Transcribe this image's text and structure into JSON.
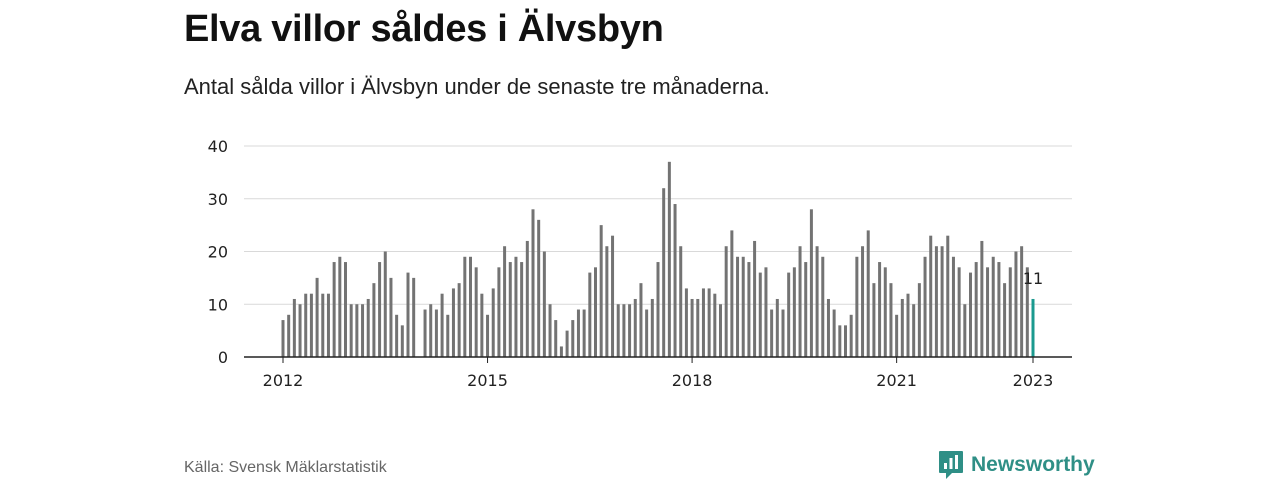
{
  "header": {
    "title": "Elva villor såldes i Älvsbyn",
    "subtitle": "Antal sålda villor i Älvsbyn under de senaste tre månaderna."
  },
  "footer": {
    "source": "Källa: Svensk Mäklarstatistik",
    "brand": "Newsworthy",
    "brand_icon": "bar-chart-logo-icon"
  },
  "colors": {
    "bar": "#737373",
    "highlight": "#1b9a8f",
    "grid": "#d9d9d9",
    "axis": "#222222",
    "brand": "#2f8f86"
  },
  "chart_data": {
    "type": "bar",
    "title": "Elva villor såldes i Älvsbyn",
    "xlabel": "",
    "ylabel": "",
    "ylim": [
      0,
      40
    ],
    "yticks": [
      0,
      10,
      20,
      30,
      40
    ],
    "xticks": [
      {
        "label": "2012",
        "x": "2012-01"
      },
      {
        "label": "2015",
        "x": "2015-01"
      },
      {
        "label": "2018",
        "x": "2018-01"
      },
      {
        "label": "2021",
        "x": "2021-01"
      },
      {
        "label": "2023",
        "x": "2023-01"
      }
    ],
    "grid": true,
    "last_value_label": "11",
    "x": [
      "2012-01",
      "2012-02",
      "2012-03",
      "2012-04",
      "2012-05",
      "2012-06",
      "2012-07",
      "2012-08",
      "2012-09",
      "2012-10",
      "2012-11",
      "2012-12",
      "2013-01",
      "2013-02",
      "2013-03",
      "2013-04",
      "2013-05",
      "2013-06",
      "2013-07",
      "2013-08",
      "2013-09",
      "2013-10",
      "2013-11",
      "2013-12",
      "2014-01",
      "2014-02",
      "2014-03",
      "2014-04",
      "2014-05",
      "2014-06",
      "2014-07",
      "2014-08",
      "2014-09",
      "2014-10",
      "2014-11",
      "2014-12",
      "2015-01",
      "2015-02",
      "2015-03",
      "2015-04",
      "2015-05",
      "2015-06",
      "2015-07",
      "2015-08",
      "2015-09",
      "2015-10",
      "2015-11",
      "2015-12",
      "2016-01",
      "2016-02",
      "2016-03",
      "2016-04",
      "2016-05",
      "2016-06",
      "2016-07",
      "2016-08",
      "2016-09",
      "2016-10",
      "2016-11",
      "2016-12",
      "2017-01",
      "2017-02",
      "2017-03",
      "2017-04",
      "2017-05",
      "2017-06",
      "2017-07",
      "2017-08",
      "2017-09",
      "2017-10",
      "2017-11",
      "2017-12",
      "2018-01",
      "2018-02",
      "2018-03",
      "2018-04",
      "2018-05",
      "2018-06",
      "2018-07",
      "2018-08",
      "2018-09",
      "2018-10",
      "2018-11",
      "2018-12",
      "2019-01",
      "2019-02",
      "2019-03",
      "2019-04",
      "2019-05",
      "2019-06",
      "2019-07",
      "2019-08",
      "2019-09",
      "2019-10",
      "2019-11",
      "2019-12",
      "2020-01",
      "2020-02",
      "2020-03",
      "2020-04",
      "2020-05",
      "2020-06",
      "2020-07",
      "2020-08",
      "2020-09",
      "2020-10",
      "2020-11",
      "2020-12",
      "2021-01",
      "2021-02",
      "2021-03",
      "2021-04",
      "2021-05",
      "2021-06",
      "2021-07",
      "2021-08",
      "2021-09",
      "2021-10",
      "2021-11",
      "2021-12",
      "2022-01",
      "2022-02",
      "2022-03",
      "2022-04",
      "2022-05",
      "2022-06",
      "2022-07",
      "2022-08",
      "2022-09",
      "2022-10",
      "2022-11",
      "2022-12",
      "2023-01"
    ],
    "values": [
      7,
      8,
      11,
      10,
      12,
      12,
      15,
      12,
      12,
      18,
      19,
      18,
      10,
      10,
      10,
      11,
      14,
      18,
      20,
      15,
      8,
      6,
      16,
      15,
      null,
      9,
      10,
      9,
      12,
      8,
      13,
      14,
      19,
      19,
      17,
      12,
      8,
      13,
      17,
      21,
      18,
      19,
      18,
      22,
      28,
      26,
      20,
      10,
      7,
      2,
      5,
      7,
      9,
      9,
      16,
      17,
      25,
      21,
      23,
      10,
      10,
      10,
      11,
      14,
      9,
      11,
      18,
      32,
      37,
      29,
      21,
      13,
      11,
      11,
      13,
      13,
      12,
      10,
      21,
      24,
      19,
      19,
      18,
      22,
      16,
      17,
      9,
      11,
      9,
      16,
      17,
      21,
      18,
      28,
      21,
      19,
      11,
      9,
      6,
      6,
      8,
      19,
      21,
      24,
      14,
      18,
      17,
      14,
      8,
      11,
      12,
      10,
      14,
      19,
      23,
      21,
      21,
      23,
      19,
      17,
      10,
      16,
      18,
      22,
      17,
      19,
      18,
      14,
      17,
      20,
      21,
      17,
      11
    ]
  }
}
